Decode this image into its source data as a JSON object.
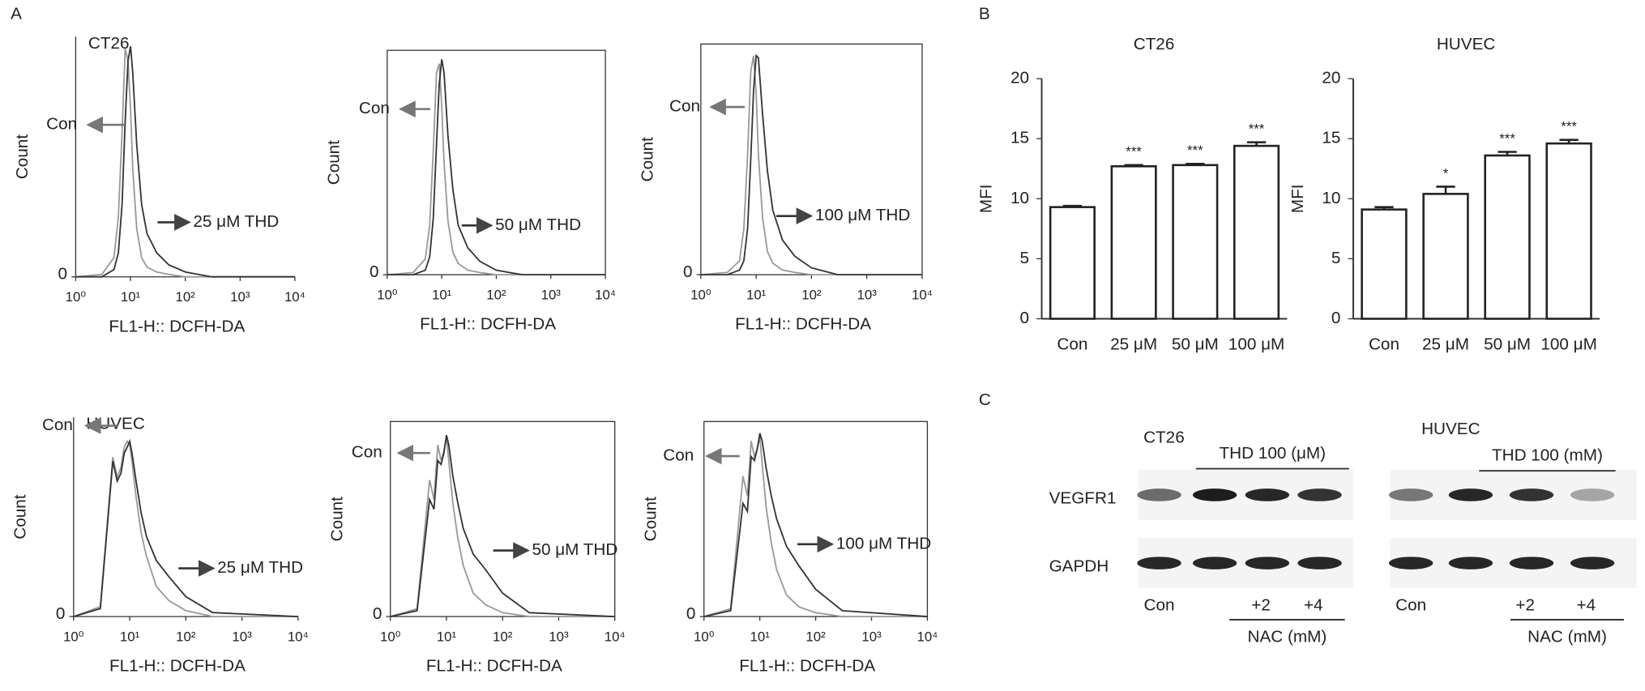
{
  "panel_labels": [
    "A",
    "B",
    "C"
  ],
  "chart_data": [
    {
      "type": "line",
      "title": "CT26",
      "xlabel": "FL1-H:: DCFH-DA",
      "ylabel": "Count",
      "log_x": true,
      "frame": false,
      "x": [
        1,
        3,
        5,
        6,
        7,
        8,
        9,
        10,
        11,
        13,
        16,
        20,
        30,
        50,
        100,
        300,
        10000
      ],
      "xlim": [
        1,
        10000
      ],
      "xticks": [
        {
          "value": 1,
          "label": "10⁰"
        },
        {
          "value": 10,
          "label": "10¹"
        },
        {
          "value": 100,
          "label": "10²"
        },
        {
          "value": 1000,
          "label": "10³"
        },
        {
          "value": 10000,
          "label": "10⁴"
        }
      ],
      "ylim": [
        0,
        100
      ],
      "yticks": [
        0
      ],
      "series": [
        {
          "name": "Con",
          "color": "#999999",
          "values": [
            0,
            1,
            8,
            25,
            60,
            95,
            90,
            70,
            45,
            20,
            8,
            4,
            2,
            1,
            0,
            0,
            0
          ]
        },
        {
          "name": "25 μM THD",
          "color": "#333333",
          "values": [
            0,
            0,
            3,
            10,
            30,
            65,
            90,
            96,
            85,
            55,
            30,
            18,
            10,
            5,
            2,
            0,
            0
          ]
        }
      ]
    },
    {
      "type": "line",
      "xlabel": "FL1-H:: DCFH-DA",
      "ylabel": "Count",
      "log_x": true,
      "frame": true,
      "x": [
        1,
        3,
        5,
        6,
        7,
        8,
        9,
        10,
        11,
        13,
        16,
        20,
        30,
        50,
        100,
        300,
        10000
      ],
      "xlim": [
        1,
        10000
      ],
      "xticks": [
        {
          "value": 1,
          "label": "10⁰"
        },
        {
          "value": 10,
          "label": "10¹"
        },
        {
          "value": 100,
          "label": "10²"
        },
        {
          "value": 1000,
          "label": "10³"
        },
        {
          "value": 10000,
          "label": "10⁴"
        }
      ],
      "ylim": [
        0,
        100
      ],
      "yticks": [
        0
      ],
      "series": [
        {
          "name": "Con",
          "color": "#999999",
          "values": [
            0,
            1,
            7,
            22,
            55,
            90,
            94,
            75,
            50,
            24,
            10,
            5,
            2,
            1,
            0,
            0,
            0
          ]
        },
        {
          "name": "50 μM THD",
          "color": "#333333",
          "values": [
            0,
            0,
            2,
            8,
            25,
            58,
            85,
            96,
            90,
            62,
            38,
            22,
            12,
            6,
            2,
            0,
            0
          ]
        }
      ]
    },
    {
      "type": "line",
      "xlabel": "FL1-H:: DCFH-DA",
      "ylabel": "Count",
      "log_x": true,
      "frame": true,
      "x": [
        1,
        3,
        5,
        6,
        7,
        8,
        9,
        10,
        11,
        13,
        16,
        20,
        30,
        50,
        100,
        300,
        10000
      ],
      "xlim": [
        1,
        10000
      ],
      "xticks": [
        {
          "value": 1,
          "label": "10⁰"
        },
        {
          "value": 10,
          "label": "10¹"
        },
        {
          "value": 100,
          "label": "10²"
        },
        {
          "value": 1000,
          "label": "10³"
        },
        {
          "value": 10000,
          "label": "10⁴"
        }
      ],
      "ylim": [
        0,
        100
      ],
      "yticks": [
        0
      ],
      "series": [
        {
          "name": "Con",
          "color": "#999999",
          "values": [
            0,
            1,
            6,
            20,
            52,
            88,
            95,
            78,
            52,
            25,
            10,
            5,
            2,
            1,
            0,
            0,
            0
          ]
        },
        {
          "name": "100 μM THD",
          "color": "#333333",
          "values": [
            0,
            0,
            2,
            6,
            20,
            50,
            80,
            95,
            94,
            70,
            45,
            28,
            15,
            8,
            3,
            0,
            0
          ]
        }
      ]
    },
    {
      "type": "line",
      "title": "HUVEC",
      "xlabel": "FL1-H:: DCFH-DA",
      "ylabel": "Count",
      "log_x": true,
      "frame": false,
      "x": [
        1,
        3,
        5,
        6,
        7,
        8,
        9,
        10,
        11,
        13,
        16,
        20,
        30,
        50,
        100,
        300,
        10000
      ],
      "xlim": [
        1,
        10000
      ],
      "xticks": [
        {
          "value": 1,
          "label": "10⁰"
        },
        {
          "value": 10,
          "label": "10¹"
        },
        {
          "value": 100,
          "label": "10²"
        },
        {
          "value": 1000,
          "label": "10³"
        },
        {
          "value": 10000,
          "label": "10⁴"
        }
      ],
      "ylim": [
        0,
        100
      ],
      "yticks": [
        0
      ],
      "series": [
        {
          "name": "Con",
          "color": "#999999",
          "values": [
            0,
            5,
            80,
            70,
            75,
            85,
            88,
            86,
            78,
            60,
            42,
            30,
            15,
            8,
            3,
            0,
            0
          ]
        },
        {
          "name": "25 μM THD",
          "color": "#333333",
          "values": [
            0,
            4,
            78,
            68,
            72,
            82,
            85,
            88,
            82,
            68,
            52,
            40,
            28,
            20,
            10,
            2,
            0
          ]
        }
      ]
    },
    {
      "type": "line",
      "xlabel": "FL1-H:: DCFH-DA",
      "ylabel": "Count",
      "log_x": true,
      "frame": true,
      "x": [
        1,
        3,
        5,
        6,
        7,
        8,
        9,
        10,
        11,
        13,
        16,
        20,
        30,
        50,
        100,
        300,
        10000
      ],
      "xlim": [
        1,
        10000
      ],
      "xticks": [
        {
          "value": 1,
          "label": "10⁰"
        },
        {
          "value": 10,
          "label": "10¹"
        },
        {
          "value": 100,
          "label": "10²"
        },
        {
          "value": 1000,
          "label": "10³"
        },
        {
          "value": 10000,
          "label": "10⁴"
        }
      ],
      "ylim": [
        0,
        100
      ],
      "yticks": [
        0
      ],
      "series": [
        {
          "name": "Con",
          "color": "#999999",
          "values": [
            0,
            4,
            70,
            60,
            88,
            80,
            85,
            92,
            80,
            58,
            40,
            26,
            12,
            6,
            2,
            0,
            0
          ]
        },
        {
          "name": "50 μM THD",
          "color": "#333333",
          "values": [
            0,
            3,
            60,
            55,
            80,
            78,
            84,
            93,
            88,
            72,
            58,
            45,
            32,
            24,
            12,
            2,
            0
          ]
        }
      ]
    },
    {
      "type": "line",
      "xlabel": "FL1-H:: DCFH-DA",
      "ylabel": "Count",
      "log_x": true,
      "frame": true,
      "x": [
        1,
        3,
        5,
        6,
        7,
        8,
        9,
        10,
        11,
        13,
        16,
        20,
        30,
        50,
        100,
        300,
        10000
      ],
      "xlim": [
        1,
        10000
      ],
      "xticks": [
        {
          "value": 1,
          "label": "10⁰"
        },
        {
          "value": 10,
          "label": "10¹"
        },
        {
          "value": 100,
          "label": "10²"
        },
        {
          "value": 1000,
          "label": "10³"
        },
        {
          "value": 10000,
          "label": "10⁴"
        }
      ],
      "ylim": [
        0,
        100
      ],
      "yticks": [
        0
      ],
      "series": [
        {
          "name": "Con",
          "color": "#999999",
          "values": [
            0,
            4,
            72,
            62,
            90,
            82,
            86,
            92,
            78,
            56,
            38,
            24,
            11,
            5,
            2,
            0,
            0
          ]
        },
        {
          "name": "100 μM THD",
          "color": "#333333",
          "values": [
            0,
            3,
            58,
            54,
            82,
            80,
            86,
            94,
            90,
            76,
            62,
            50,
            36,
            26,
            14,
            3,
            0
          ]
        }
      ]
    },
    {
      "type": "bar",
      "title": "CT26",
      "ylabel": "MFI",
      "categories": [
        "Con",
        "25 μM",
        "50 μM",
        "100 μM"
      ],
      "values": [
        9.3,
        12.7,
        12.8,
        14.4
      ],
      "errors": [
        0.1,
        0.1,
        0.1,
        0.3
      ],
      "annotations": [
        null,
        "***",
        "***",
        "***"
      ],
      "color": "#ffffff",
      "ylim": [
        0,
        20
      ],
      "yticks": [
        0,
        5,
        10,
        15,
        20
      ]
    },
    {
      "type": "bar",
      "title": "HUVEC",
      "ylabel": "MFI",
      "categories": [
        "Con",
        "25 μM",
        "50 μM",
        "100 μM"
      ],
      "values": [
        9.1,
        10.4,
        13.6,
        14.6
      ],
      "errors": [
        0.2,
        0.6,
        0.3,
        0.3
      ],
      "annotations": [
        null,
        "*",
        "***",
        "***"
      ],
      "color": "#ffffff",
      "ylim": [
        0,
        20
      ],
      "yticks": [
        0,
        5,
        10,
        15,
        20
      ]
    }
  ],
  "blot_rows": [
    "VEGFR1",
    "GAPDH"
  ],
  "blots": [
    {
      "cell": "CT26",
      "treatment": "THD 100 (μM)",
      "lanes": [
        "Con",
        null,
        "+2",
        "+4"
      ],
      "footer": "NAC (mM)"
    },
    {
      "cell": "HUVEC",
      "treatment": "THD 100 (mM)",
      "lanes": [
        "Con",
        null,
        "+2",
        "+4"
      ],
      "footer": "NAC (mM)"
    }
  ]
}
